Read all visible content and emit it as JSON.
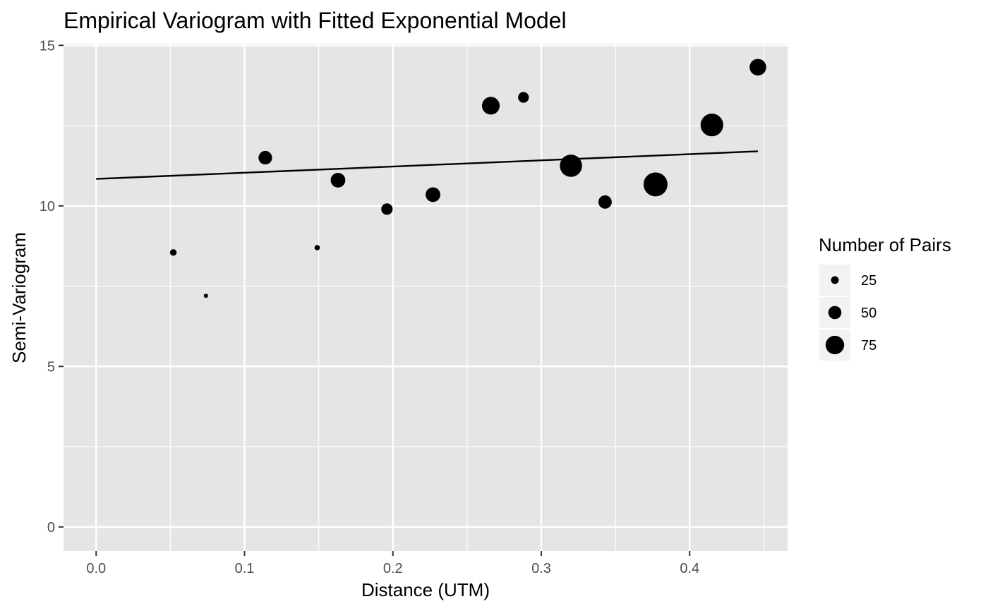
{
  "chart_data": {
    "type": "scatter",
    "title": "Empirical Variogram with Fitted Exponential Model",
    "xlabel": "Distance (UTM)",
    "ylabel": "Semi-Variogram",
    "xlim": [
      -0.022,
      0.466
    ],
    "ylim": [
      -0.75,
      15.05
    ],
    "x_ticks": [
      0.0,
      0.1,
      0.2,
      0.3,
      0.4
    ],
    "x_tick_labels": [
      "0.0",
      "0.1",
      "0.2",
      "0.3",
      "0.4"
    ],
    "y_ticks": [
      0,
      5,
      10,
      15
    ],
    "y_tick_labels": [
      "0",
      "5",
      "10",
      "15"
    ],
    "grid": true,
    "panel_background": "#e5e5e5",
    "grid_color": "#ffffff",
    "point_color": "#000000",
    "series": [
      {
        "points": [
          {
            "x": 0.052,
            "y": 8.55,
            "np": 20
          },
          {
            "x": 0.074,
            "y": 7.2,
            "np": 9
          },
          {
            "x": 0.114,
            "y": 11.5,
            "np": 52
          },
          {
            "x": 0.149,
            "y": 8.7,
            "np": 14
          },
          {
            "x": 0.163,
            "y": 10.8,
            "np": 57
          },
          {
            "x": 0.196,
            "y": 9.9,
            "np": 42
          },
          {
            "x": 0.227,
            "y": 10.35,
            "np": 57
          },
          {
            "x": 0.266,
            "y": 13.12,
            "np": 71
          },
          {
            "x": 0.288,
            "y": 13.38,
            "np": 39
          },
          {
            "x": 0.32,
            "y": 11.25,
            "np": 92
          },
          {
            "x": 0.343,
            "y": 10.12,
            "np": 51
          },
          {
            "x": 0.377,
            "y": 10.67,
            "np": 100
          },
          {
            "x": 0.415,
            "y": 12.52,
            "np": 94
          },
          {
            "x": 0.446,
            "y": 14.32,
            "np": 66
          }
        ]
      }
    ],
    "fitted_line": {
      "color": "#000000",
      "points": [
        {
          "x": 0.0,
          "y": 10.84
        },
        {
          "x": 0.446,
          "y": 11.7
        }
      ]
    },
    "legend": {
      "title": "Number of Pairs",
      "placement": "right",
      "entries": [
        {
          "label": "25",
          "value": 25
        },
        {
          "label": "50",
          "value": 50
        },
        {
          "label": "75",
          "value": 75
        }
      ]
    }
  }
}
